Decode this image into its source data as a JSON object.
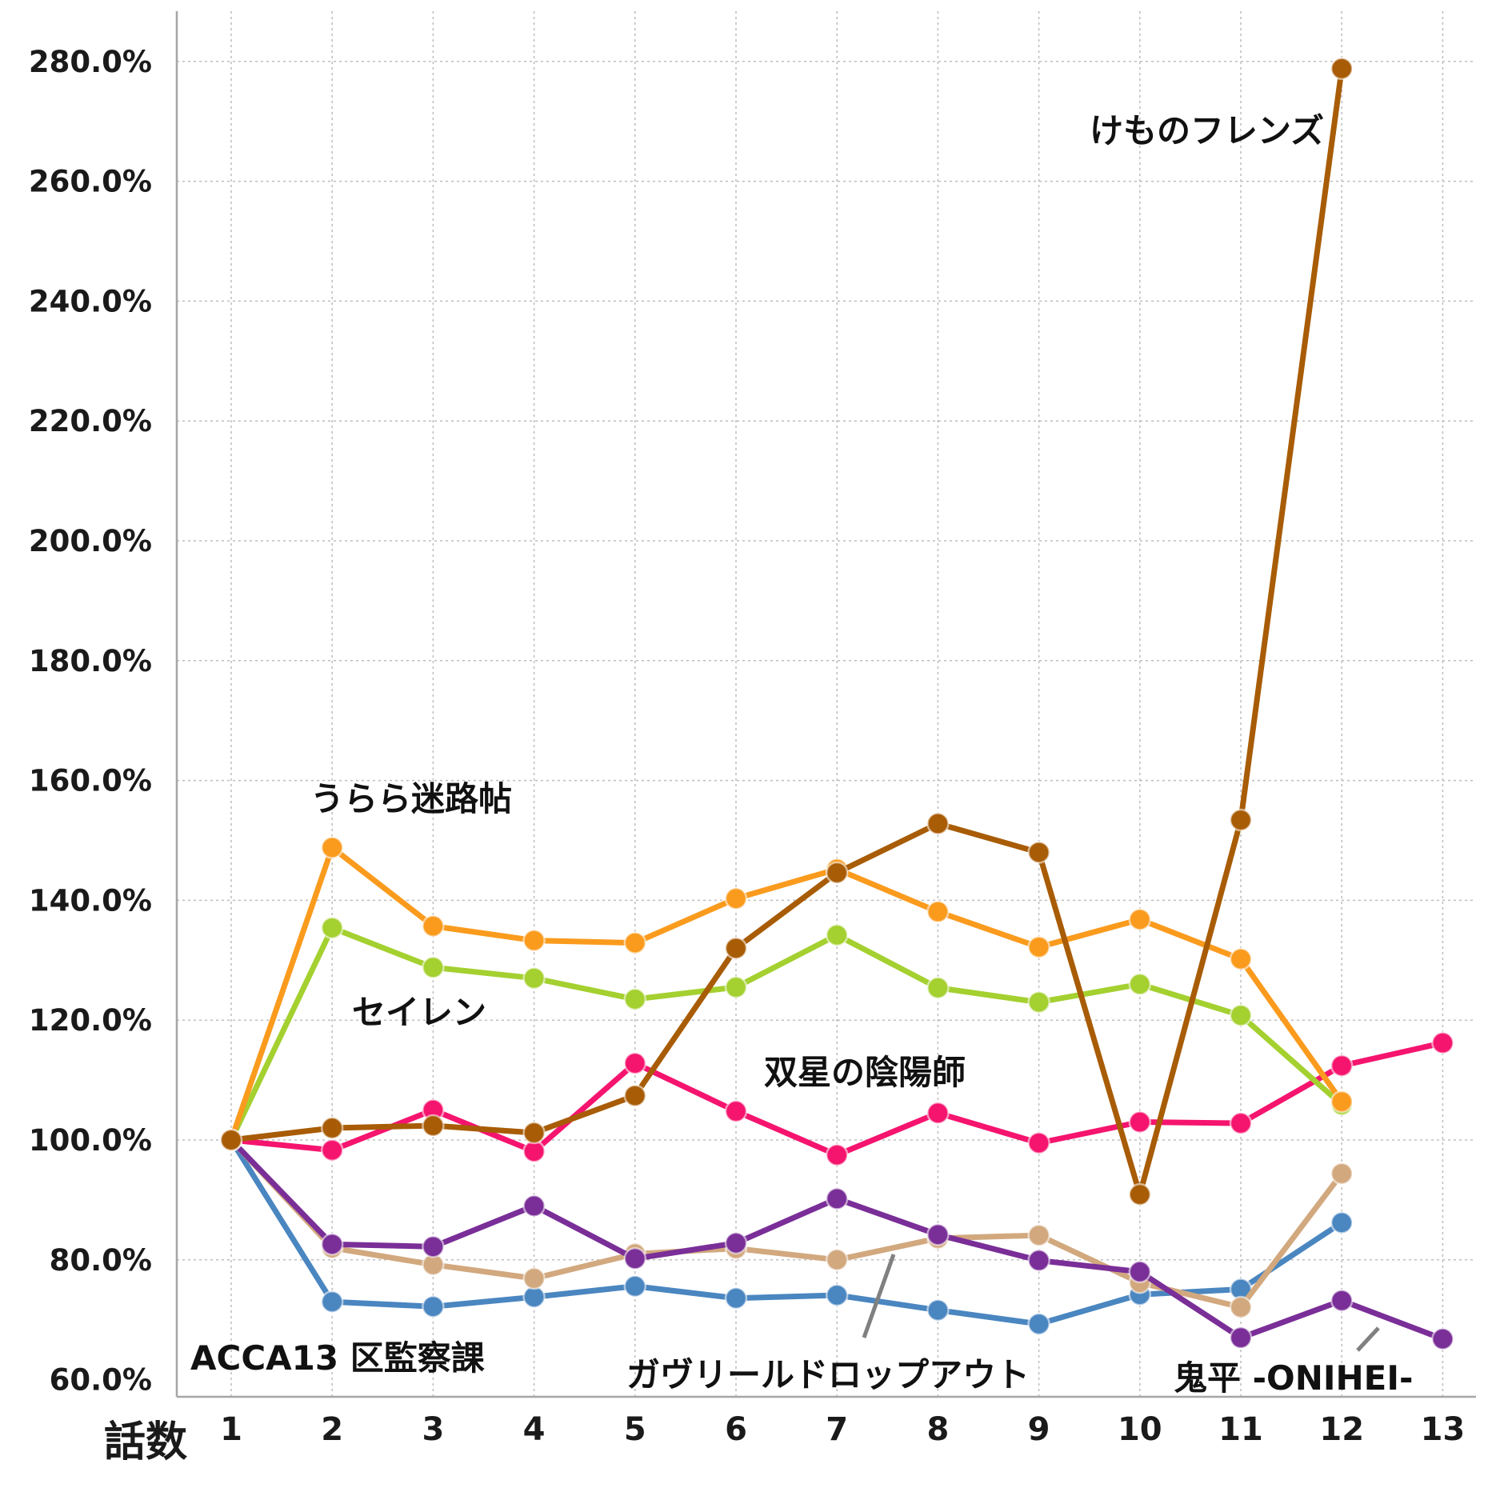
{
  "chart_data": {
    "type": "line",
    "xlabel": "話数",
    "ylabel": "",
    "ylim": [
      60,
      285
    ],
    "yticks": [
      60,
      80,
      100,
      120,
      140,
      160,
      180,
      200,
      220,
      240,
      260,
      280
    ],
    "ytick_labels": [
      "60.0%",
      "80.0%",
      "100.0%",
      "120.0%",
      "140.0%",
      "160.0%",
      "180.0%",
      "200.0%",
      "220.0%",
      "240.0%",
      "260.0%",
      "280.0%"
    ],
    "x": [
      1,
      2,
      3,
      4,
      5,
      6,
      7,
      8,
      9,
      10,
      11,
      12,
      13
    ],
    "xtick_labels": [
      "1",
      "2",
      "3",
      "4",
      "5",
      "6",
      "7",
      "8",
      "9",
      "10",
      "11",
      "12",
      "13"
    ],
    "grid": true,
    "series": [
      {
        "name": "ACCA13 区監察課",
        "color": "#4a86c0",
        "values": [
          100,
          73,
          72.2,
          73.8,
          75.6,
          73.6,
          74.1,
          71.6,
          69.3,
          74.2,
          75.1,
          86.2,
          null
        ]
      },
      {
        "name": "ガヴリールドロップアウト",
        "color": "#d2a87e",
        "values": [
          100,
          82,
          79.2,
          76.9,
          81,
          81.9,
          80,
          83.6,
          84.1,
          76.2,
          72.1,
          94.4,
          null
        ]
      },
      {
        "name": "鬼平 -ONIHEI-",
        "color": "#7a2e97",
        "values": [
          100,
          82.6,
          82.2,
          89,
          80.2,
          82.8,
          90.2,
          84.2,
          79.9,
          78,
          67,
          73.2,
          66.8
        ]
      },
      {
        "name": "双星の陰陽師",
        "color": "#f5146e",
        "values": [
          100,
          98.3,
          105,
          98.1,
          112.8,
          104.8,
          97.5,
          104.5,
          99.5,
          103,
          102.8,
          112.4,
          116.2
        ]
      },
      {
        "name": "セイレン",
        "color": "#a4d030",
        "values": [
          100,
          135.4,
          128.8,
          127,
          123.5,
          125.5,
          134.2,
          125.4,
          123,
          126,
          120.8,
          105.9,
          null
        ]
      },
      {
        "name": "うらら迷路帖",
        "color": "#fa9b1e",
        "values": [
          100,
          148.8,
          135.7,
          133.3,
          132.9,
          140.3,
          145.2,
          138.1,
          132.2,
          136.8,
          130.2,
          106.4,
          null
        ]
      },
      {
        "name": "けものフレンズ",
        "color": "#a85c05",
        "values": [
          100,
          102,
          102.4,
          101.2,
          107.4,
          132,
          144.6,
          152.8,
          148,
          90.9,
          153.4,
          278.8,
          null
        ]
      }
    ]
  }
}
